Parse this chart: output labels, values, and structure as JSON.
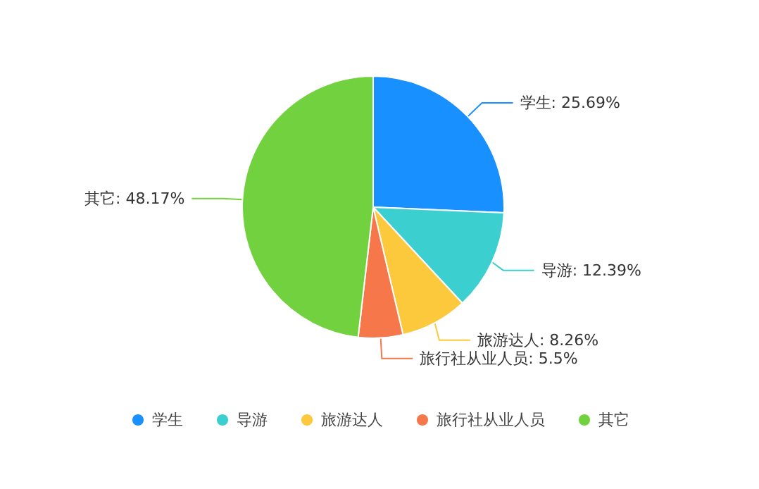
{
  "chart_data": {
    "type": "pie",
    "categories": [
      "学生",
      "导游",
      "旅游达人",
      "旅行社从业人员",
      "其它"
    ],
    "values": [
      25.69,
      12.39,
      8.26,
      5.5,
      48.17
    ],
    "value_labels": [
      "学生: 25.69%",
      "导游: 12.39%",
      "旅游达人: 8.26%",
      "旅行社从业人员: 5.5%",
      "其它: 48.17%"
    ],
    "colors": [
      "#1890ff",
      "#3ccfcf",
      "#fcc93d",
      "#f5774a",
      "#72d13f"
    ],
    "legend": "bottom"
  }
}
